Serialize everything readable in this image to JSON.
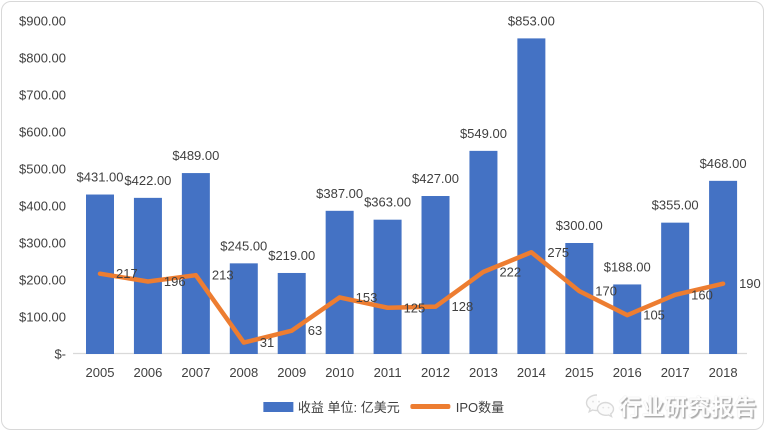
{
  "chart_data": {
    "type": "bar+line combo",
    "title": "",
    "categories": [
      "2005",
      "2006",
      "2007",
      "2008",
      "2009",
      "2010",
      "2011",
      "2012",
      "2013",
      "2014",
      "2015",
      "2016",
      "2017",
      "2018"
    ],
    "series": [
      {
        "name": "收益 单位: 亿美元",
        "type": "bar",
        "color": "#4472C4",
        "values": [
          431,
          422,
          489,
          245,
          219,
          387,
          363,
          427,
          549,
          853,
          300,
          188,
          355,
          468
        ],
        "value_labels": [
          "$431.00",
          "$422.00",
          "$489.00",
          "$245.00",
          "$219.00",
          "$387.00",
          "$363.00",
          "$427.00",
          "$549.00",
          "$853.00",
          "$300.00",
          "$188.00",
          "$355.00",
          "$468.00"
        ]
      },
      {
        "name": "IPO数量",
        "type": "line",
        "color": "#ED7D31",
        "values": [
          217,
          196,
          213,
          31,
          63,
          153,
          125,
          128,
          222,
          275,
          170,
          105,
          160,
          190
        ],
        "value_labels": [
          "217",
          "196",
          "213",
          "31",
          "63",
          "153",
          "125",
          "128",
          "222",
          "275",
          "170",
          "105",
          "160",
          "190"
        ]
      }
    ],
    "y_axis": {
      "min": 0,
      "max": 900,
      "step": 100,
      "tick_labels": [
        "$-",
        "$100.00",
        "$200.00",
        "$300.00",
        "$400.00",
        "$500.00",
        "$600.00",
        "$700.00",
        "$800.00",
        "$900.00"
      ]
    },
    "grid": false,
    "legend_position": "bottom"
  },
  "legend": {
    "bar_label": "收益 单位: 亿美元",
    "line_label": "IPO数量"
  },
  "watermark": {
    "text": "行业研究报告"
  },
  "colors": {
    "bar": "#4472C4",
    "line": "#ED7D31",
    "label_text": "#404040",
    "axis_line": "#D9D9D9"
  }
}
